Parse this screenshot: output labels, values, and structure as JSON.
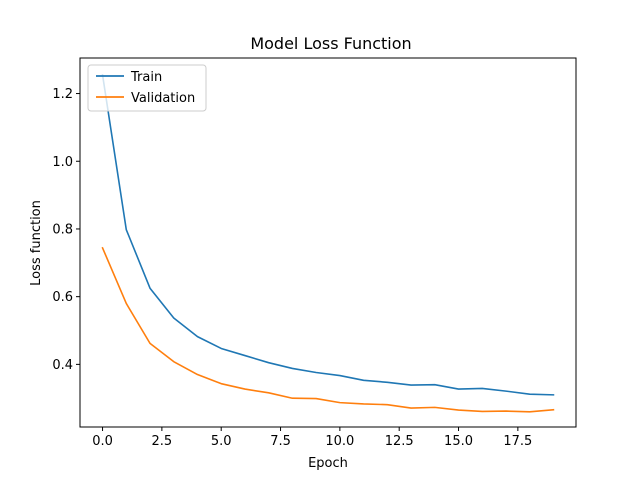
{
  "chart_data": {
    "type": "line",
    "title": "Model Loss Function",
    "xlabel": "Epoch",
    "ylabel": "Loss function",
    "xlim": [
      -0.95,
      19.95
    ],
    "ylim": [
      0.215,
      1.305
    ],
    "xticks": [
      0,
      2.5,
      5,
      7.5,
      10,
      12.5,
      15,
      17.5
    ],
    "xtick_labels": [
      "0.0",
      "2.5",
      "5.0",
      "7.5",
      "10.0",
      "12.5",
      "15.0",
      "17.5"
    ],
    "yticks": [
      0.4,
      0.6,
      0.8,
      1.0,
      1.2
    ],
    "ytick_labels": [
      "0.4",
      "0.6",
      "0.8",
      "1.0",
      "1.2"
    ],
    "grid": false,
    "legend_position": "top-left",
    "x": [
      0,
      1,
      2,
      3,
      4,
      5,
      6,
      7,
      8,
      9,
      10,
      11,
      12,
      13,
      14,
      15,
      16,
      17,
      18,
      19
    ],
    "series": [
      {
        "name": "Train",
        "color": "#1f77b4",
        "values": [
          1.255,
          0.798,
          0.625,
          0.537,
          0.482,
          0.447,
          0.426,
          0.405,
          0.388,
          0.376,
          0.367,
          0.353,
          0.347,
          0.339,
          0.34,
          0.327,
          0.329,
          0.321,
          0.312,
          0.31
        ]
      },
      {
        "name": "Validation",
        "color": "#ff7f0e",
        "values": [
          0.744,
          0.58,
          0.462,
          0.408,
          0.37,
          0.343,
          0.327,
          0.316,
          0.3,
          0.299,
          0.287,
          0.283,
          0.281,
          0.271,
          0.273,
          0.265,
          0.261,
          0.262,
          0.26,
          0.266
        ]
      }
    ]
  }
}
